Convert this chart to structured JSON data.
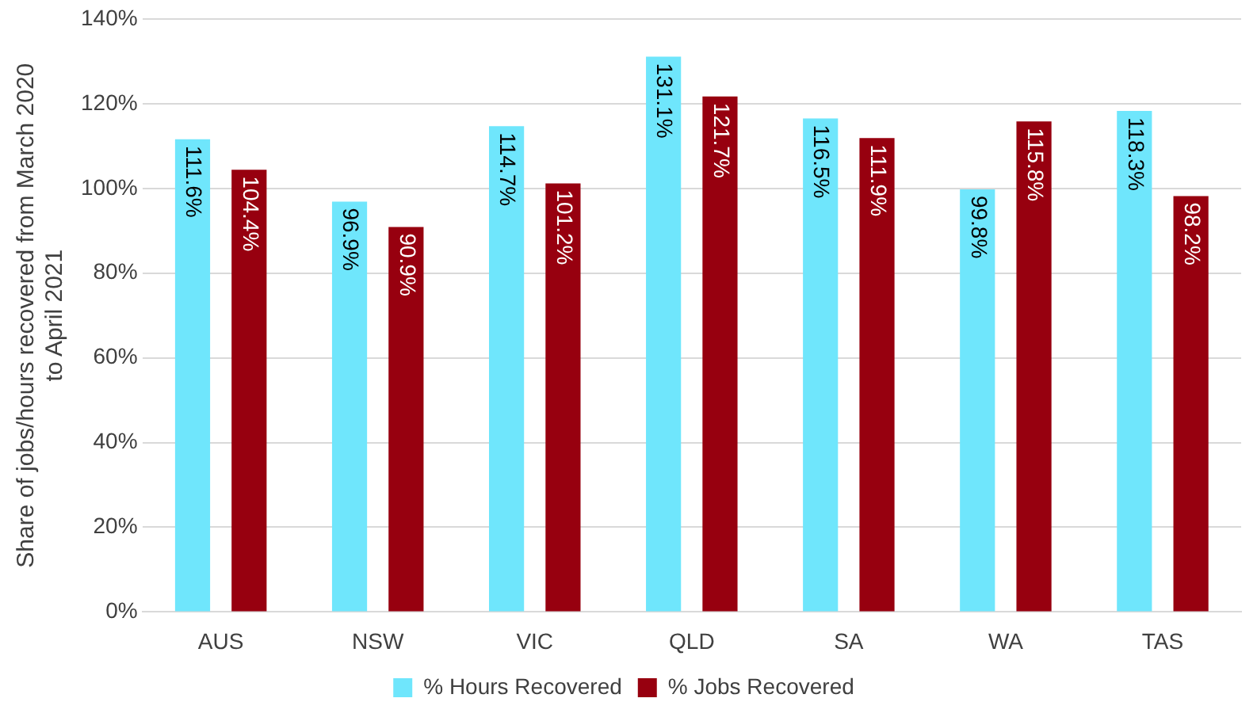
{
  "chart_data": {
    "type": "bar",
    "ylabel": "Share of jobs/hours recovered from March 2020 to April 2021",
    "categories": [
      "AUS",
      "NSW",
      "VIC",
      "QLD",
      "SA",
      "WA",
      "TAS"
    ],
    "series": [
      {
        "name": "% Hours Recovered",
        "color": "#6fe6fc",
        "values": [
          111.6,
          96.9,
          114.7,
          131.1,
          116.5,
          99.8,
          118.3
        ],
        "value_labels": [
          "111.6%",
          "96.9%",
          "114.7%",
          "131.1%",
          "116.5%",
          "99.8%",
          "118.3%"
        ]
      },
      {
        "name": "% Jobs Recovered",
        "color": "#97000f",
        "values": [
          104.4,
          90.9,
          101.2,
          121.7,
          111.9,
          115.8,
          98.2
        ],
        "value_labels": [
          "104.4%",
          "90.9%",
          "101.2%",
          "121.7%",
          "111.9%",
          "115.8%",
          "98.2%"
        ]
      }
    ],
    "ylim": [
      0,
      140
    ],
    "yticks": [
      {
        "value": 0,
        "label": "0%"
      },
      {
        "value": 20,
        "label": "20%"
      },
      {
        "value": 40,
        "label": "40%"
      },
      {
        "value": 60,
        "label": "60%"
      },
      {
        "value": 80,
        "label": "80%"
      },
      {
        "value": 100,
        "label": "100%"
      },
      {
        "value": 120,
        "label": "120%"
      },
      {
        "value": 140,
        "label": "140%"
      }
    ],
    "grid": "y",
    "legend": "bottom"
  }
}
